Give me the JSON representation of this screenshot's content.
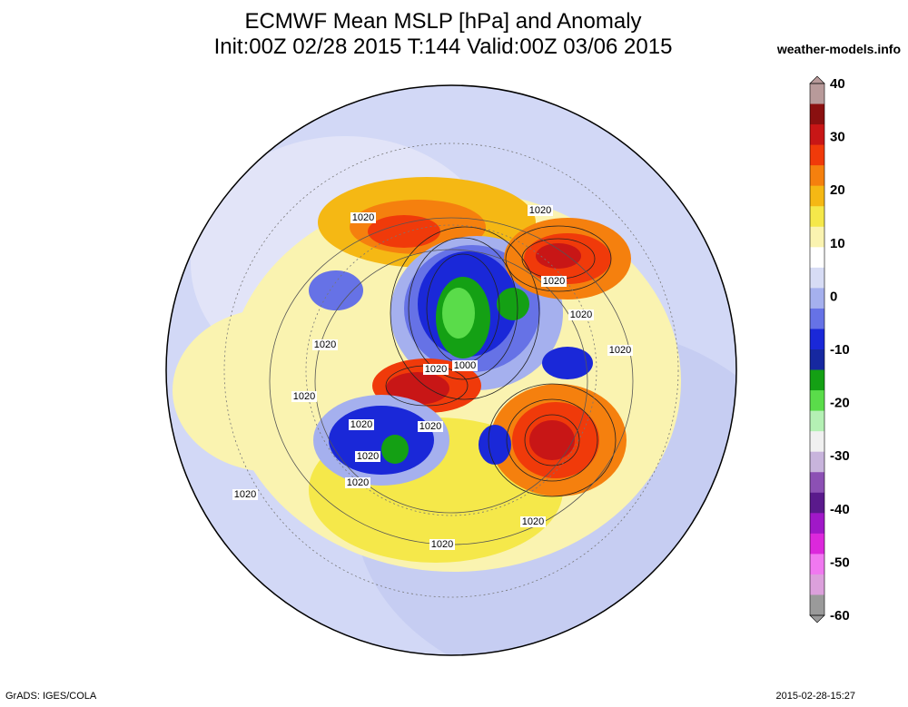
{
  "title_line1": "ECMWF Mean MSLP [hPa] and Anomaly",
  "title_line2": "Init:00Z 02/28 2015 T:144 Valid:00Z 03/06 2015",
  "brand": "weather-models.info",
  "footer_left": "GrADS: IGES/COLA",
  "footer_right": "2015-02-28-15:27",
  "colorbar": {
    "ticks": [
      "40",
      "30",
      "20",
      "10",
      "0",
      "-10",
      "-20",
      "-30",
      "-40",
      "-50",
      "-60"
    ],
    "colors": [
      "#b89a9a",
      "#8a1010",
      "#c81616",
      "#f03a0a",
      "#f5800e",
      "#f5b814",
      "#f5e84a",
      "#faf3b0",
      "#ffffff",
      "#d7dcf5",
      "#a5b0ee",
      "#6672e6",
      "#1a28d8",
      "#1628a0",
      "#14a014",
      "#5adc4a",
      "#b4f0b4",
      "#f0f0f0",
      "#c8b4dc",
      "#8c50b4",
      "#5a1a8c",
      "#a018c8",
      "#dc28dc",
      "#f078f0",
      "#dca0dc",
      "#9a9a9a"
    ]
  },
  "isobar_labels": [
    "1020",
    "1020",
    "1020",
    "1020",
    "1000",
    "1020",
    "1020",
    "1020",
    "1020",
    "1020",
    "1020",
    "1020",
    "1020",
    "1020",
    "1020",
    "1020"
  ],
  "colors": {
    "background": "#ffffff",
    "neutral_pale_blue": "#d7dcf5"
  }
}
